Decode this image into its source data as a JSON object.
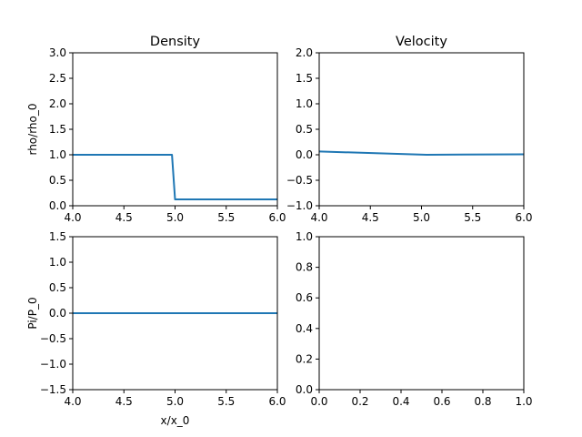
{
  "chart_data": [
    {
      "type": "line",
      "title": "Density",
      "xlabel": "",
      "ylabel": "rho/rho_0",
      "xlim": [
        4.0,
        6.0
      ],
      "ylim": [
        0.0,
        3.0
      ],
      "xticks": [
        "4.0",
        "4.5",
        "5.0",
        "5.5",
        "6.0"
      ],
      "yticks": [
        "0.0",
        "0.5",
        "1.0",
        "1.5",
        "2.0",
        "2.5",
        "3.0"
      ],
      "series": [
        {
          "x": [
            4.0,
            4.97,
            5.0,
            6.0
          ],
          "y": [
            1.0,
            1.0,
            0.125,
            0.125
          ]
        }
      ]
    },
    {
      "type": "line",
      "title": "Velocity",
      "xlabel": "",
      "ylabel": "",
      "xlim": [
        4.0,
        6.0
      ],
      "ylim": [
        -1.0,
        2.0
      ],
      "xticks": [
        "4.0",
        "4.5",
        "5.0",
        "5.5",
        "6.0"
      ],
      "yticks": [
        "−1.0",
        "−0.5",
        "0.0",
        "0.5",
        "1.0",
        "1.5",
        "2.0"
      ],
      "series": [
        {
          "x": [
            4.0,
            5.05,
            6.0
          ],
          "y": [
            0.065,
            0.0,
            0.01
          ]
        }
      ]
    },
    {
      "type": "line",
      "title": "",
      "xlabel": "x/x_0",
      "ylabel": "Pi/P_0",
      "xlim": [
        4.0,
        6.0
      ],
      "ylim": [
        -1.5,
        1.5
      ],
      "xticks": [
        "4.0",
        "4.5",
        "5.0",
        "5.5",
        "6.0"
      ],
      "yticks": [
        "−1.5",
        "−1.0",
        "−0.5",
        "0.0",
        "0.5",
        "1.0",
        "1.5"
      ],
      "series": [
        {
          "x": [
            4.0,
            6.0
          ],
          "y": [
            0.0,
            0.0
          ]
        }
      ]
    },
    {
      "type": "line",
      "title": "",
      "xlabel": "",
      "ylabel": "",
      "xlim": [
        0.0,
        1.0
      ],
      "ylim": [
        0.0,
        1.0
      ],
      "xticks": [
        "0.0",
        "0.2",
        "0.4",
        "0.6",
        "0.8",
        "1.0"
      ],
      "yticks": [
        "0.0",
        "0.2",
        "0.4",
        "0.6",
        "0.8",
        "1.0"
      ],
      "series": []
    }
  ],
  "colors": {
    "line": "#1f77b4",
    "axes": "#000000"
  }
}
